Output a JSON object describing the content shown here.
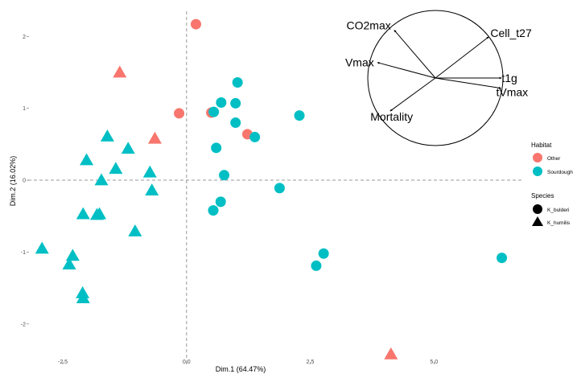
{
  "chart_data": {
    "type": "scatter",
    "xlabel": "Dim.1 (64.47%)",
    "ylabel": "Dim.2 (16.02%)",
    "xlim": [
      -3.2,
      6.8
    ],
    "ylim": [
      -2.55,
      2.35
    ],
    "x_ticks": [
      -2.5,
      0.0,
      2.5,
      5.0
    ],
    "x_tick_labels": [
      "-2.5",
      "0.0",
      "2.5",
      "5.0"
    ],
    "y_ticks": [
      -2,
      -1,
      0,
      1,
      2
    ],
    "y_tick_labels": [
      "-2",
      "-1",
      "0",
      "1",
      "2"
    ],
    "grid": false,
    "reference_lines": [
      {
        "axis": "x",
        "value": 0,
        "style": "dashed"
      },
      {
        "axis": "y",
        "value": 0,
        "style": "dashed"
      }
    ],
    "colors": {
      "Other": "#F8766D",
      "Sourdough": "#00BFC4"
    },
    "points": [
      {
        "x": 0.19,
        "y": 2.17,
        "habitat": "Other",
        "species": "K_bulderi"
      },
      {
        "x": -0.15,
        "y": 0.93,
        "habitat": "Other",
        "species": "K_bulderi"
      },
      {
        "x": 0.5,
        "y": 0.94,
        "habitat": "Other",
        "species": "K_bulderi"
      },
      {
        "x": 1.23,
        "y": 0.64,
        "habitat": "Other",
        "species": "K_bulderi"
      },
      {
        "x": 1.03,
        "y": 1.36,
        "habitat": "Sourdough",
        "species": "K_bulderi"
      },
      {
        "x": 0.7,
        "y": 1.08,
        "habitat": "Sourdough",
        "species": "K_bulderi"
      },
      {
        "x": 0.99,
        "y": 1.07,
        "habitat": "Sourdough",
        "species": "K_bulderi"
      },
      {
        "x": 0.55,
        "y": 0.95,
        "habitat": "Sourdough",
        "species": "K_bulderi"
      },
      {
        "x": 0.99,
        "y": 0.8,
        "habitat": "Sourdough",
        "species": "K_bulderi"
      },
      {
        "x": 2.28,
        "y": 0.9,
        "habitat": "Sourdough",
        "species": "K_bulderi"
      },
      {
        "x": 1.38,
        "y": 0.6,
        "habitat": "Sourdough",
        "species": "K_bulderi"
      },
      {
        "x": 0.6,
        "y": 0.45,
        "habitat": "Sourdough",
        "species": "K_bulderi"
      },
      {
        "x": 0.76,
        "y": 0.07,
        "habitat": "Sourdough",
        "species": "K_bulderi"
      },
      {
        "x": 1.88,
        "y": -0.11,
        "habitat": "Sourdough",
        "species": "K_bulderi"
      },
      {
        "x": 0.69,
        "y": -0.3,
        "habitat": "Sourdough",
        "species": "K_bulderi"
      },
      {
        "x": 0.54,
        "y": -0.42,
        "habitat": "Sourdough",
        "species": "K_bulderi"
      },
      {
        "x": 2.77,
        "y": -1.02,
        "habitat": "Sourdough",
        "species": "K_bulderi"
      },
      {
        "x": 2.62,
        "y": -1.19,
        "habitat": "Sourdough",
        "species": "K_bulderi"
      },
      {
        "x": 6.37,
        "y": -1.08,
        "habitat": "Sourdough",
        "species": "K_bulderi"
      },
      {
        "x": -1.35,
        "y": 1.5,
        "habitat": "Other",
        "species": "K_humilis"
      },
      {
        "x": -0.64,
        "y": 0.58,
        "habitat": "Other",
        "species": "K_humilis"
      },
      {
        "x": 4.13,
        "y": -2.42,
        "habitat": "Other",
        "species": "K_humilis"
      },
      {
        "x": -1.6,
        "y": 0.61,
        "habitat": "Sourdough",
        "species": "K_humilis"
      },
      {
        "x": -1.18,
        "y": 0.44,
        "habitat": "Sourdough",
        "species": "K_humilis"
      },
      {
        "x": -2.02,
        "y": 0.28,
        "habitat": "Sourdough",
        "species": "K_humilis"
      },
      {
        "x": -1.43,
        "y": 0.16,
        "habitat": "Sourdough",
        "species": "K_humilis"
      },
      {
        "x": -0.74,
        "y": 0.11,
        "habitat": "Sourdough",
        "species": "K_humilis"
      },
      {
        "x": -1.72,
        "y": 0.0,
        "habitat": "Sourdough",
        "species": "K_humilis"
      },
      {
        "x": -0.7,
        "y": -0.14,
        "habitat": "Sourdough",
        "species": "K_humilis"
      },
      {
        "x": -2.09,
        "y": -0.47,
        "habitat": "Sourdough",
        "species": "K_humilis"
      },
      {
        "x": -1.81,
        "y": -0.48,
        "habitat": "Sourdough",
        "species": "K_humilis"
      },
      {
        "x": -1.76,
        "y": -0.47,
        "habitat": "Sourdough",
        "species": "K_humilis"
      },
      {
        "x": -1.04,
        "y": -0.71,
        "habitat": "Sourdough",
        "species": "K_humilis"
      },
      {
        "x": -2.92,
        "y": -0.95,
        "habitat": "Sourdough",
        "species": "K_humilis"
      },
      {
        "x": -2.3,
        "y": -1.05,
        "habitat": "Sourdough",
        "species": "K_humilis"
      },
      {
        "x": -2.37,
        "y": -1.17,
        "habitat": "Sourdough",
        "species": "K_humilis"
      },
      {
        "x": -2.1,
        "y": -1.57,
        "habitat": "Sourdough",
        "species": "K_humilis"
      },
      {
        "x": -2.09,
        "y": -1.64,
        "habitat": "Sourdough",
        "species": "K_humilis"
      }
    ],
    "variables_inset": {
      "shape": "circle",
      "variables": [
        {
          "name": "CO2max",
          "x": -0.61,
          "y": 0.71
        },
        {
          "name": "Cell_t27",
          "x": 0.79,
          "y": 0.61
        },
        {
          "name": "Vmax",
          "x": -0.86,
          "y": 0.23
        },
        {
          "name": "t1g",
          "x": 0.98,
          "y": 0.0
        },
        {
          "name": "tVmax",
          "x": 0.97,
          "y": -0.15
        },
        {
          "name": "Mortality",
          "x": -0.67,
          "y": -0.49
        }
      ]
    },
    "legends": {
      "habitat": {
        "title": "Habitat",
        "entries": [
          "Other",
          "Sourdough"
        ]
      },
      "species": {
        "title": "Species",
        "entries": [
          "K_bulderi",
          "K_humilis"
        ]
      }
    }
  }
}
